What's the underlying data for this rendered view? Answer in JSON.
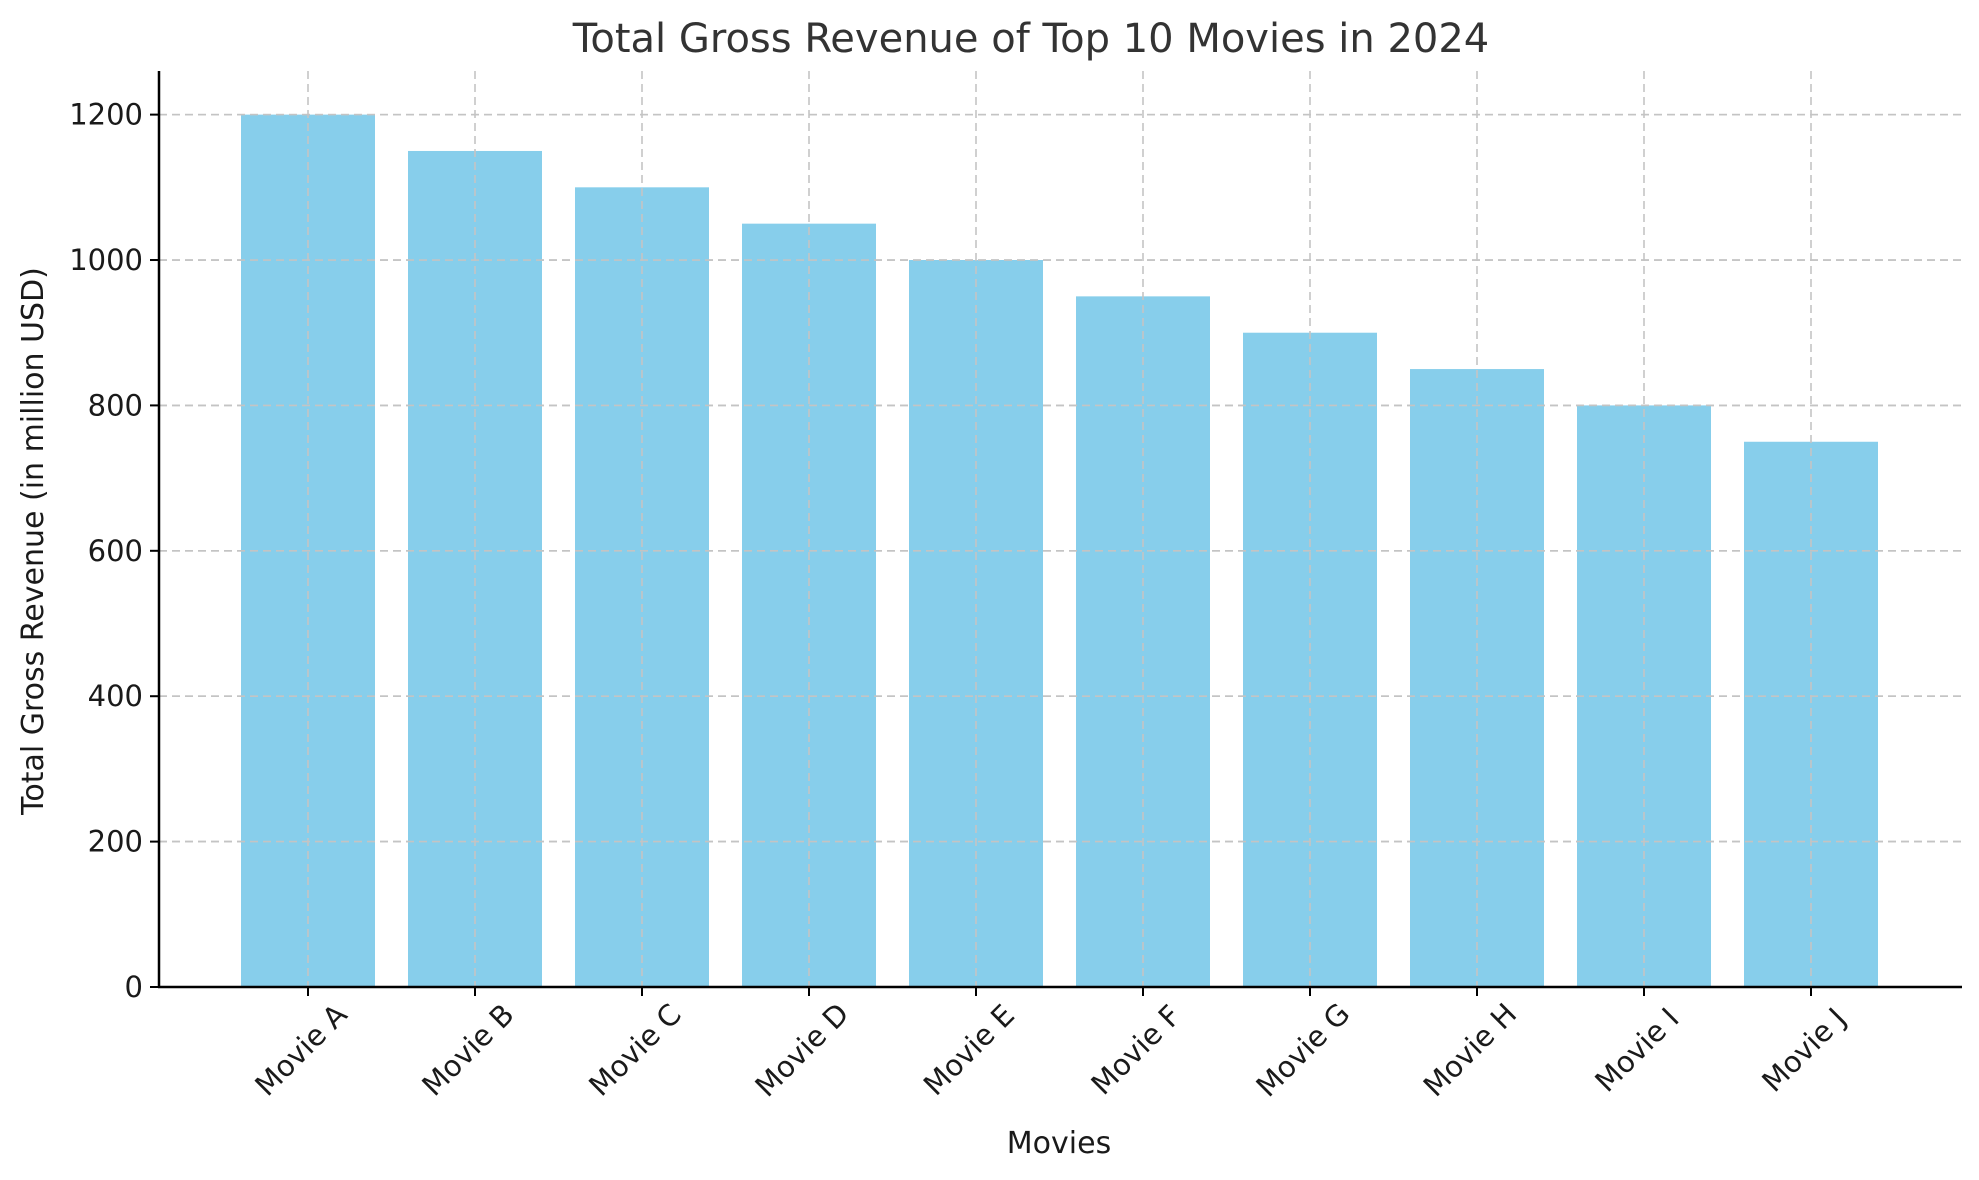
{
  "chart_data": {
    "type": "bar",
    "title": "Total Gross Revenue of Top 10 Movies in 2024",
    "xlabel": "Movies",
    "ylabel": "Total Gross Revenue (in million USD)",
    "categories": [
      "Movie A",
      "Movie B",
      "Movie C",
      "Movie D",
      "Movie E",
      "Movie F",
      "Movie G",
      "Movie H",
      "Movie I",
      "Movie J"
    ],
    "values": [
      1200,
      1150,
      1100,
      1050,
      1000,
      950,
      900,
      850,
      800,
      750
    ],
    "ylim": [
      0,
      1260
    ],
    "yticks": [
      0,
      200,
      400,
      600,
      800,
      1000,
      1200
    ],
    "ytick_labels": [
      "0",
      "200",
      "400",
      "600",
      "800",
      "1000",
      "1200"
    ],
    "bar_color": "#87CEEB",
    "grid": true,
    "xtick_rotation_deg": 45
  }
}
